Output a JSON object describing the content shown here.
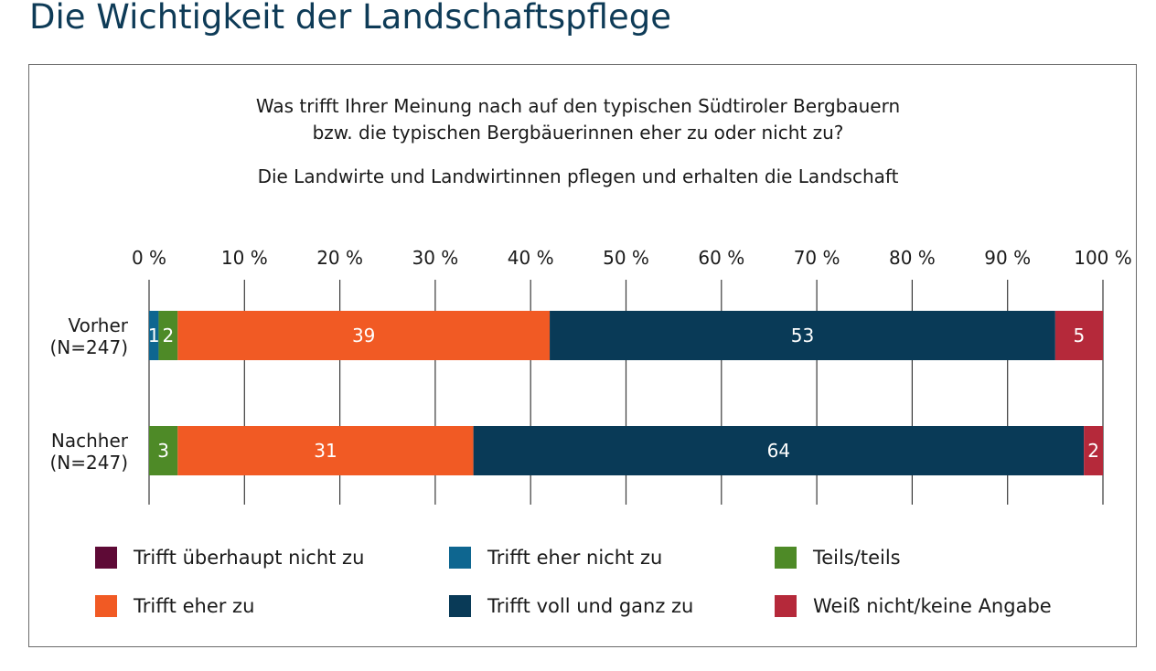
{
  "page": {
    "title": "Die Wichtigkeit der Landschaftspflege"
  },
  "chart_data": {
    "type": "bar",
    "orientation": "horizontal",
    "stacked": true,
    "question_line1": "Was trifft Ihrer Meinung nach auf den typischen Südtiroler Bergbauern",
    "question_line2": "bzw. die typischen Bergbäuerinnen eher zu oder nicht zu?",
    "subtitle": "Die Landwirte und Landwirtinnen pflegen und erhalten die Landschaft",
    "categories": [
      {
        "line1": "Vorher",
        "line2": "(N=247)"
      },
      {
        "line1": "Nachher",
        "line2": "(N=247)"
      }
    ],
    "x_ticks": [
      "0 %",
      "10 %",
      "20 %",
      "30 %",
      "40 %",
      "50 %",
      "60 %",
      "70 %",
      "80 %",
      "90 %",
      "100 %"
    ],
    "xlim": [
      0,
      100
    ],
    "grid": true,
    "legend_position": "bottom",
    "series": [
      {
        "name": "Trifft überhaupt nicht zu",
        "color": "#5e0a36",
        "values": [
          0,
          0
        ],
        "labels": [
          "",
          ""
        ]
      },
      {
        "name": "Trifft eher nicht zu",
        "color": "#0e6690",
        "values": [
          1,
          0
        ],
        "labels": [
          "1",
          ""
        ]
      },
      {
        "name": "Teils/teils",
        "color": "#4e8a27",
        "values": [
          2,
          3
        ],
        "labels": [
          "2",
          "3"
        ]
      },
      {
        "name": "Trifft eher zu",
        "color": "#f15a24",
        "values": [
          39,
          31
        ],
        "labels": [
          "39",
          "31"
        ]
      },
      {
        "name": "Trifft voll und ganz zu",
        "color": "#093a57",
        "values": [
          53,
          64
        ],
        "labels": [
          "53",
          "64"
        ]
      },
      {
        "name": "Weiß nicht/keine Angabe",
        "color": "#b5293a",
        "values": [
          5,
          2
        ],
        "labels": [
          "5",
          "2"
        ]
      }
    ]
  }
}
